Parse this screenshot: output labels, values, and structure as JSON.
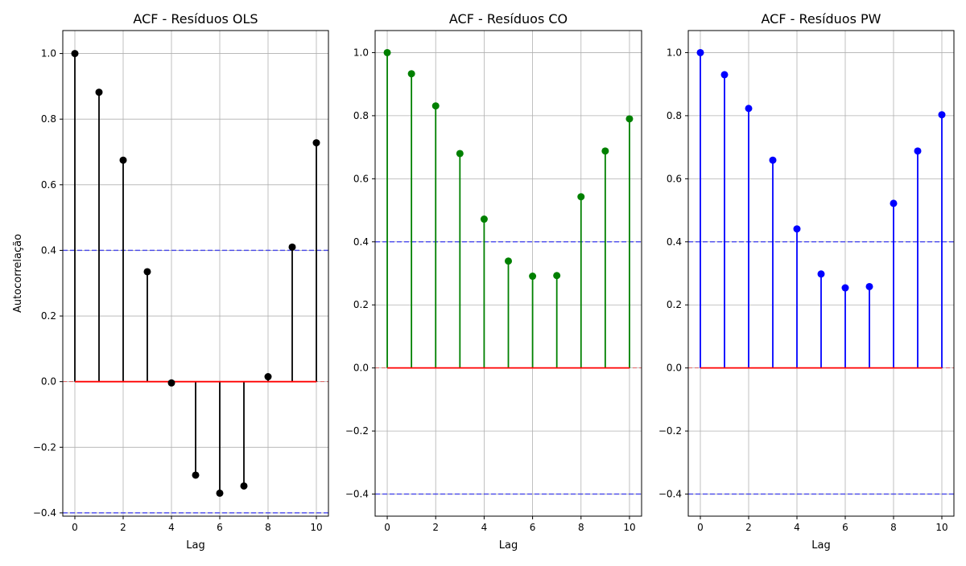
{
  "chart_data": [
    {
      "type": "stem",
      "title": "ACF - Resíduos OLS",
      "xlabel": "Lag",
      "ylabel": "Autocorrelação",
      "x": [
        0,
        1,
        2,
        3,
        4,
        5,
        6,
        7,
        8,
        9,
        10
      ],
      "values": [
        1.0,
        0.882,
        0.675,
        0.335,
        -0.004,
        -0.285,
        -0.34,
        -0.318,
        0.015,
        0.41,
        0.728
      ],
      "confidence_bounds": [
        -0.4,
        0.4
      ],
      "xlim": [
        -0.5,
        10.5
      ],
      "ylim": [
        -0.41,
        1.07
      ],
      "xticks": [
        "0",
        "2",
        "4",
        "6",
        "8",
        "10"
      ],
      "yticks": [
        "−0.4",
        "−0.2",
        "0.0",
        "0.2",
        "0.4",
        "0.6",
        "0.8",
        "1.0"
      ],
      "grid": true,
      "color": "#000000",
      "baseline_color": "#ff0000",
      "bound_color": "#0000ff"
    },
    {
      "type": "stem",
      "title": "ACF - Resíduos CO",
      "xlabel": "Lag",
      "ylabel": "",
      "x": [
        0,
        1,
        2,
        3,
        4,
        5,
        6,
        7,
        8,
        9,
        10
      ],
      "values": [
        1.0,
        0.933,
        0.831,
        0.68,
        0.472,
        0.339,
        0.291,
        0.293,
        0.543,
        0.688,
        0.79
      ],
      "confidence_bounds": [
        -0.4,
        0.4
      ],
      "xlim": [
        -0.5,
        10.5
      ],
      "ylim": [
        -0.47,
        1.07
      ],
      "xticks": [
        "0",
        "2",
        "4",
        "6",
        "8",
        "10"
      ],
      "yticks": [
        "−0.4",
        "−0.2",
        "0.0",
        "0.2",
        "0.4",
        "0.6",
        "0.8",
        "1.0"
      ],
      "grid": true,
      "color": "#008000",
      "baseline_color": "#ff0000",
      "bound_color": "#0000ff"
    },
    {
      "type": "stem",
      "title": "ACF - Resíduos PW",
      "xlabel": "Lag",
      "ylabel": "",
      "x": [
        0,
        1,
        2,
        3,
        4,
        5,
        6,
        7,
        8,
        9,
        10
      ],
      "values": [
        1.0,
        0.93,
        0.823,
        0.659,
        0.441,
        0.298,
        0.254,
        0.258,
        0.522,
        0.688,
        0.803
      ],
      "confidence_bounds": [
        -0.4,
        0.4
      ],
      "xlim": [
        -0.5,
        10.5
      ],
      "ylim": [
        -0.47,
        1.07
      ],
      "xticks": [
        "0",
        "2",
        "4",
        "6",
        "8",
        "10"
      ],
      "yticks": [
        "−0.4",
        "−0.2",
        "0.0",
        "0.2",
        "0.4",
        "0.6",
        "0.8",
        "1.0"
      ],
      "grid": true,
      "color": "#0000ff",
      "baseline_color": "#ff0000",
      "bound_color": "#0000ff"
    }
  ]
}
